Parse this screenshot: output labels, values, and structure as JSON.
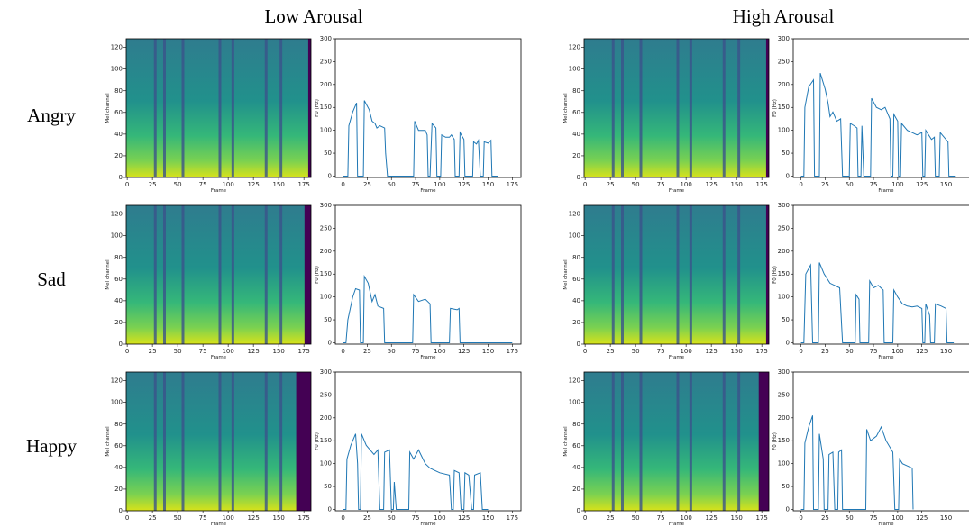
{
  "figure": {
    "columns": [
      "Low Arousal",
      "High Arousal"
    ],
    "rows": [
      "Angry",
      "Sad",
      "Happy"
    ]
  },
  "chart_data": [
    {
      "type": "spectrogram",
      "xlabel": "Frame",
      "ylabel": "Mel channel",
      "xlim": [
        -1,
        182
      ],
      "ylim": [
        0,
        128
      ],
      "xticks": [
        0,
        25,
        50,
        75,
        100,
        125,
        150,
        175
      ],
      "yticks": [
        0,
        20,
        40,
        60,
        80,
        100,
        120
      ]
    },
    {
      "type": "line",
      "xlabel": "Frame",
      "ylabel": "F0 (Hz)",
      "xlim": [
        -8,
        184
      ],
      "ylim": [
        -3,
        300
      ],
      "xticks": [
        0,
        25,
        50,
        75,
        100,
        125,
        150,
        175
      ],
      "yticks": [
        0,
        50,
        100,
        150,
        200,
        250,
        300
      ],
      "color": "#1f77b4",
      "x": [
        0,
        5,
        6,
        10,
        14,
        15,
        21,
        22,
        27,
        30,
        33,
        35,
        38,
        43,
        44,
        46,
        73,
        74,
        78,
        85,
        87,
        88,
        90,
        92,
        96,
        97,
        101,
        102,
        106,
        110,
        112,
        115,
        116,
        120,
        121,
        125,
        126,
        134,
        135,
        138,
        140,
        142,
        145,
        146,
        150,
        153,
        154,
        160
      ],
      "values": [
        0,
        0,
        110,
        140,
        160,
        0,
        0,
        165,
        145,
        120,
        115,
        105,
        110,
        105,
        50,
        0,
        0,
        120,
        100,
        100,
        90,
        0,
        0,
        115,
        105,
        0,
        0,
        90,
        85,
        85,
        90,
        80,
        0,
        0,
        95,
        80,
        0,
        0,
        75,
        70,
        78,
        0,
        0,
        75,
        72,
        78,
        0,
        0
      ]
    },
    {
      "type": "spectrogram",
      "xlabel": "Frame",
      "ylabel": "Mel channel",
      "xlim": [
        -1,
        182
      ],
      "ylim": [
        0,
        128
      ],
      "xticks": [
        0,
        25,
        50,
        75,
        100,
        125,
        150,
        175
      ],
      "yticks": [
        0,
        20,
        40,
        60,
        80,
        100,
        120
      ]
    },
    {
      "type": "line",
      "xlabel": "Frame",
      "ylabel": "F0 (Hz)",
      "xlim": [
        -8,
        184
      ],
      "ylim": [
        -3,
        300
      ],
      "xticks": [
        0,
        25,
        50,
        75,
        100,
        125,
        150,
        175
      ],
      "yticks": [
        0,
        50,
        100,
        150,
        200,
        250,
        300
      ],
      "color": "#1f77b4",
      "x": [
        0,
        3,
        4,
        8,
        13,
        14,
        19,
        20,
        25,
        28,
        30,
        33,
        37,
        41,
        43,
        50,
        51,
        55,
        58,
        59,
        62,
        63,
        65,
        72,
        73,
        78,
        83,
        87,
        92,
        93,
        95,
        96,
        100,
        101,
        103,
        104,
        110,
        115,
        120,
        125,
        126,
        128,
        129,
        135,
        138,
        139,
        143,
        144,
        148,
        152,
        153,
        160
      ],
      "values": [
        0,
        0,
        150,
        195,
        210,
        0,
        0,
        225,
        190,
        160,
        130,
        140,
        120,
        125,
        0,
        0,
        115,
        110,
        105,
        0,
        0,
        110,
        0,
        0,
        170,
        150,
        145,
        150,
        125,
        0,
        0,
        135,
        120,
        0,
        0,
        115,
        100,
        95,
        90,
        95,
        0,
        0,
        100,
        80,
        85,
        0,
        0,
        95,
        85,
        75,
        0,
        0
      ]
    },
    {
      "type": "spectrogram",
      "xlabel": "Frame",
      "ylabel": "Mel channel",
      "xlim": [
        -1,
        182
      ],
      "ylim": [
        0,
        128
      ],
      "xticks": [
        0,
        25,
        50,
        75,
        100,
        125,
        150,
        175
      ],
      "yticks": [
        0,
        20,
        40,
        60,
        80,
        100,
        120
      ]
    },
    {
      "type": "line",
      "xlabel": "Frame",
      "ylabel": "F0 (Hz)",
      "xlim": [
        -8,
        184
      ],
      "ylim": [
        -3,
        300
      ],
      "xticks": [
        0,
        25,
        50,
        75,
        100,
        125,
        150,
        175
      ],
      "yticks": [
        0,
        50,
        100,
        150,
        200,
        250,
        300
      ],
      "color": "#1f77b4",
      "x": [
        0,
        3,
        5,
        10,
        13,
        17,
        18,
        21,
        22,
        26,
        30,
        33,
        36,
        42,
        43,
        72,
        73,
        78,
        85,
        90,
        91,
        110,
        111,
        118,
        120,
        121,
        175
      ],
      "values": [
        0,
        0,
        50,
        100,
        118,
        115,
        0,
        0,
        145,
        130,
        90,
        105,
        80,
        75,
        0,
        0,
        105,
        90,
        95,
        85,
        0,
        0,
        75,
        72,
        75,
        0,
        0
      ]
    },
    {
      "type": "spectrogram",
      "xlabel": "Frame",
      "ylabel": "Mel channel",
      "xlim": [
        -1,
        182
      ],
      "ylim": [
        0,
        128
      ],
      "xticks": [
        0,
        25,
        50,
        75,
        100,
        125,
        150,
        175
      ],
      "yticks": [
        0,
        20,
        40,
        60,
        80,
        100,
        120
      ]
    },
    {
      "type": "line",
      "xlabel": "Frame",
      "ylabel": "F0 (Hz)",
      "xlim": [
        -8,
        184
      ],
      "ylim": [
        -3,
        300
      ],
      "xticks": [
        0,
        25,
        50,
        75,
        100,
        125,
        150,
        175
      ],
      "yticks": [
        0,
        50,
        100,
        150,
        200,
        250,
        300
      ],
      "color": "#1f77b4",
      "x": [
        0,
        3,
        5,
        10,
        12,
        18,
        19,
        24,
        30,
        35,
        40,
        43,
        56,
        57,
        60,
        61,
        70,
        71,
        75,
        80,
        85,
        86,
        95,
        96,
        100,
        105,
        110,
        115,
        120,
        125,
        126,
        128,
        129,
        133,
        134,
        138,
        139,
        145,
        150,
        151,
        158
      ],
      "values": [
        0,
        0,
        150,
        170,
        0,
        0,
        175,
        150,
        130,
        125,
        120,
        0,
        0,
        105,
        95,
        0,
        0,
        135,
        120,
        125,
        115,
        0,
        0,
        115,
        100,
        85,
        80,
        78,
        80,
        75,
        0,
        0,
        85,
        60,
        0,
        0,
        85,
        80,
        75,
        0,
        0
      ]
    },
    {
      "type": "spectrogram",
      "xlabel": "Frame",
      "ylabel": "Mel channel",
      "xlim": [
        -1,
        182
      ],
      "ylim": [
        0,
        128
      ],
      "xticks": [
        0,
        25,
        50,
        75,
        100,
        125,
        150,
        175
      ],
      "yticks": [
        0,
        20,
        40,
        60,
        80,
        100,
        120
      ]
    },
    {
      "type": "line",
      "xlabel": "Frame",
      "ylabel": "F0 (Hz)",
      "xlim": [
        -8,
        184
      ],
      "ylim": [
        -3,
        300
      ],
      "xticks": [
        0,
        25,
        50,
        75,
        100,
        125,
        150,
        175
      ],
      "yticks": [
        0,
        50,
        100,
        150,
        200,
        250,
        300
      ],
      "color": "#1f77b4",
      "x": [
        0,
        3,
        4,
        8,
        13,
        15,
        16,
        18,
        19,
        24,
        28,
        32,
        36,
        38,
        42,
        43,
        48,
        50,
        52,
        53,
        55,
        68,
        69,
        73,
        78,
        85,
        90,
        95,
        100,
        110,
        112,
        114,
        115,
        120,
        122,
        125,
        126,
        130,
        133,
        135,
        136,
        142,
        144,
        150
      ],
      "values": [
        0,
        0,
        110,
        140,
        165,
        100,
        0,
        0,
        165,
        140,
        130,
        120,
        130,
        0,
        0,
        125,
        130,
        0,
        0,
        60,
        0,
        0,
        125,
        110,
        130,
        100,
        90,
        85,
        80,
        75,
        0,
        0,
        85,
        80,
        0,
        0,
        80,
        75,
        0,
        0,
        75,
        80,
        0,
        0
      ]
    },
    {
      "type": "spectrogram",
      "xlabel": "Frame",
      "ylabel": "Mel channel",
      "xlim": [
        -1,
        182
      ],
      "ylim": [
        0,
        128
      ],
      "xticks": [
        0,
        25,
        50,
        75,
        100,
        125,
        150,
        175
      ],
      "yticks": [
        0,
        20,
        40,
        60,
        80,
        100,
        120
      ]
    },
    {
      "type": "line",
      "xlabel": "Frame",
      "ylabel": "F0 (Hz)",
      "xlim": [
        -8,
        184
      ],
      "ylim": [
        -3,
        300
      ],
      "xticks": [
        0,
        25,
        50,
        75,
        100,
        125,
        150,
        175
      ],
      "yticks": [
        0,
        50,
        100,
        150,
        200,
        250,
        300
      ],
      "color": "#1f77b4",
      "x": [
        0,
        3,
        4,
        8,
        12,
        13,
        18,
        19,
        23,
        24,
        28,
        29,
        33,
        35,
        38,
        39,
        42,
        43,
        67,
        68,
        72,
        78,
        83,
        88,
        95,
        97,
        101,
        102,
        105,
        110,
        115,
        116
      ],
      "values": [
        0,
        0,
        145,
        180,
        205,
        0,
        0,
        165,
        110,
        0,
        0,
        120,
        125,
        0,
        0,
        125,
        130,
        0,
        0,
        175,
        150,
        160,
        180,
        150,
        125,
        0,
        0,
        110,
        100,
        95,
        90,
        0
      ]
    }
  ]
}
